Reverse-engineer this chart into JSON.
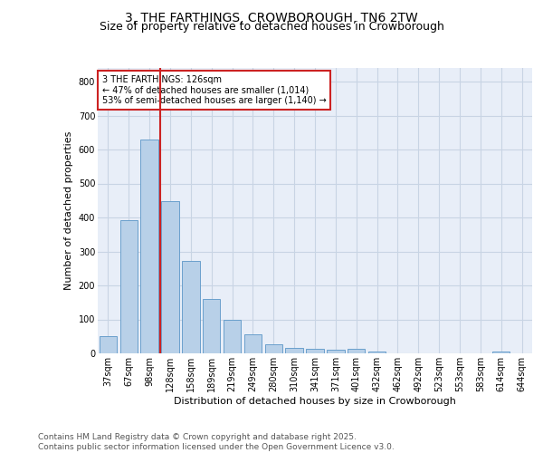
{
  "title": "3, THE FARTHINGS, CROWBOROUGH, TN6 2TW",
  "subtitle": "Size of property relative to detached houses in Crowborough",
  "xlabel": "Distribution of detached houses by size in Crowborough",
  "ylabel": "Number of detached properties",
  "categories": [
    "37sqm",
    "67sqm",
    "98sqm",
    "128sqm",
    "158sqm",
    "189sqm",
    "219sqm",
    "249sqm",
    "280sqm",
    "310sqm",
    "341sqm",
    "371sqm",
    "401sqm",
    "432sqm",
    "462sqm",
    "492sqm",
    "523sqm",
    "553sqm",
    "583sqm",
    "614sqm",
    "644sqm"
  ],
  "values": [
    50,
    393,
    630,
    447,
    272,
    160,
    100,
    55,
    28,
    17,
    14,
    11,
    13,
    5,
    0,
    0,
    0,
    0,
    0,
    5,
    0
  ],
  "bar_color": "#b8d0e8",
  "bar_edge_color": "#6aa0cc",
  "grid_color": "#c8d4e4",
  "bg_color": "#e8eef8",
  "vline_color": "#cc2222",
  "vline_pos": 2.5,
  "annotation_text": "3 THE FARTHINGS: 126sqm\n← 47% of detached houses are smaller (1,014)\n53% of semi-detached houses are larger (1,140) →",
  "annotation_box_color": "#cc2222",
  "footer_text": "Contains HM Land Registry data © Crown copyright and database right 2025.\nContains public sector information licensed under the Open Government Licence v3.0.",
  "ylim": [
    0,
    840
  ],
  "yticks": [
    0,
    100,
    200,
    300,
    400,
    500,
    600,
    700,
    800
  ],
  "title_fontsize": 10,
  "subtitle_fontsize": 9,
  "axis_label_fontsize": 8,
  "tick_fontsize": 7,
  "annotation_fontsize": 7,
  "footer_fontsize": 6.5
}
